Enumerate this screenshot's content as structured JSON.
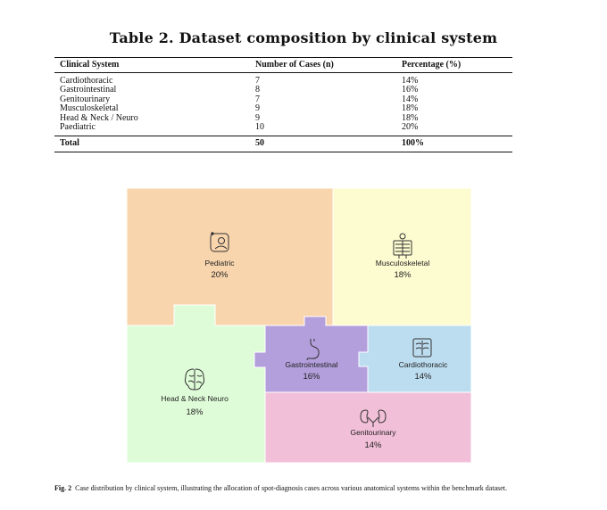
{
  "table": {
    "title": "Table 2. Dataset composition by clinical system",
    "headers": [
      "Clinical System",
      "Number of Cases (n)",
      "Percentage (%)"
    ],
    "rows": [
      [
        "Cardiothoracic",
        "7",
        "14%"
      ],
      [
        "Gastrointestinal",
        "8",
        "16%"
      ],
      [
        "Genitourinary",
        "7",
        "14%"
      ],
      [
        "Musculoskeletal",
        "9",
        "18%"
      ],
      [
        "Head & Neck / Neuro",
        "9",
        "18%"
      ],
      [
        "Paediatric",
        "10",
        "20%"
      ]
    ],
    "total": [
      "Total",
      "50",
      "100%"
    ]
  },
  "figure": {
    "regions": [
      {
        "id": "pediatric",
        "label": "Pediatric",
        "pct": "20%",
        "color": "#f8d5ad",
        "icon": "pediatric-icon"
      },
      {
        "id": "musculoskeletal",
        "label": "Musculoskeletal",
        "pct": "18%",
        "color": "#fdfbd0",
        "icon": "skeleton-icon"
      },
      {
        "id": "head-neck-neuro",
        "label": "Head & Neck Neuro",
        "pct": "18%",
        "color": "#dffcd8",
        "icon": "brain-icon"
      },
      {
        "id": "gastrointestinal",
        "label": "Gastrointestinal",
        "pct": "16%",
        "color": "#b39fdc",
        "icon": "stomach-icon"
      },
      {
        "id": "cardiothoracic",
        "label": "Cardiothoracic",
        "pct": "14%",
        "color": "#bcdcef",
        "icon": "chest-icon"
      },
      {
        "id": "genitourinary",
        "label": "Genitourinary",
        "pct": "14%",
        "color": "#f2bfd8",
        "icon": "kidney-icon"
      }
    ]
  },
  "caption": {
    "label": "Fig. 2",
    "text": "Case distribution by clinical system, illustrating the allocation of spot-diagnosis cases across various anatomical systems within the benchmark dataset."
  }
}
